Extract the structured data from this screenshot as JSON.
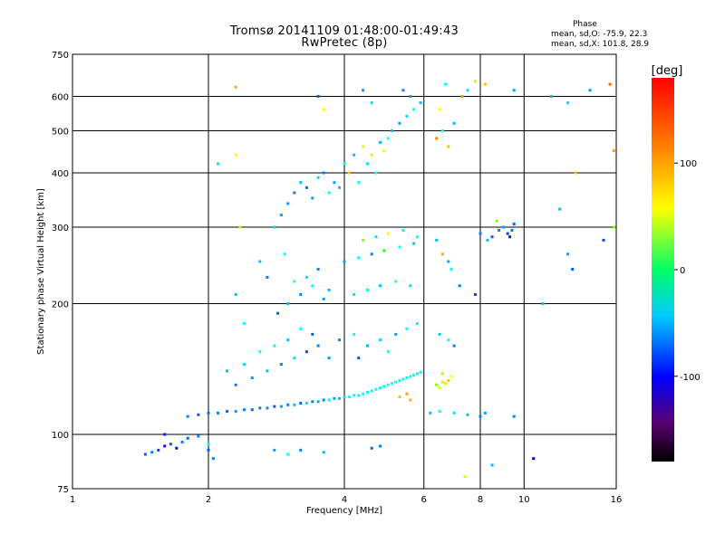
{
  "header": {
    "title_line1": "Tromsø 20141109 01:48:00-01:49:43",
    "title_line2": "RwPretec (8p)",
    "phase_heading": "Phase",
    "phase_o": "mean, sd,O: -75.9, 22.3",
    "phase_x": "mean, sd,X: 101.8, 28.9"
  },
  "chart_data": {
    "type": "scatter",
    "title": "Tromsø 20141109 01:48:00-01:49:43",
    "subtitle": "RwPretec (8p)",
    "xlabel": "Frequency [MHz]",
    "ylabel": "Stationary phase Virtual Height [km]",
    "xscale": "log",
    "yscale": "log",
    "xlim": [
      1,
      16
    ],
    "ylim": [
      75,
      750
    ],
    "x_ticks": [
      1,
      2,
      4,
      6,
      8,
      10,
      16
    ],
    "y_ticks": [
      75,
      100,
      200,
      300,
      400,
      500,
      600,
      750
    ],
    "grid": true,
    "colorbar": {
      "label": "[deg]",
      "min": -180,
      "max": 180,
      "ticks": [
        100,
        0,
        -100
      ],
      "colormap": "rainbow"
    },
    "series": [
      {
        "points": [
          [
            1.45,
            90,
            -110
          ],
          [
            1.5,
            91,
            -100
          ],
          [
            1.55,
            92,
            -120
          ],
          [
            1.6,
            94,
            -150
          ],
          [
            1.65,
            95,
            -115
          ],
          [
            1.7,
            93,
            -140
          ],
          [
            1.75,
            96,
            -100
          ],
          [
            1.6,
            100,
            -130
          ],
          [
            1.8,
            98,
            -110
          ],
          [
            1.9,
            99,
            -95
          ],
          [
            2.0,
            92,
            -110
          ],
          [
            2.05,
            88,
            -100
          ],
          [
            2.8,
            92,
            -90
          ],
          [
            3.0,
            90,
            -60
          ],
          [
            3.2,
            92,
            -100
          ],
          [
            4.6,
            93,
            -110
          ],
          [
            4.8,
            94,
            -100
          ],
          [
            3.6,
            91,
            -80
          ],
          [
            1.8,
            110,
            -100
          ],
          [
            1.9,
            111,
            -110
          ],
          [
            2.0,
            112,
            -105
          ],
          [
            2.1,
            112,
            -100
          ],
          [
            2.2,
            113,
            -110
          ],
          [
            2.3,
            113,
            -95
          ],
          [
            2.4,
            114,
            -100
          ],
          [
            2.5,
            114,
            -105
          ],
          [
            2.6,
            115,
            -100
          ],
          [
            2.7,
            115,
            -95
          ],
          [
            2.8,
            116,
            -110
          ],
          [
            2.9,
            116,
            -90
          ],
          [
            3.0,
            117,
            -100
          ],
          [
            3.1,
            117,
            -80
          ],
          [
            3.2,
            118,
            -105
          ],
          [
            3.3,
            118,
            -70
          ],
          [
            3.4,
            119,
            -100
          ],
          [
            3.5,
            119,
            -85
          ],
          [
            3.6,
            120,
            -100
          ],
          [
            3.7,
            120,
            -60
          ],
          [
            3.8,
            121,
            -90
          ],
          [
            3.9,
            121,
            -80
          ],
          [
            4.0,
            122,
            -70
          ],
          [
            4.1,
            122,
            -60
          ],
          [
            4.2,
            123,
            -55
          ],
          [
            4.3,
            123,
            -50
          ],
          [
            4.4,
            124,
            -60
          ],
          [
            4.5,
            125,
            -55
          ],
          [
            4.6,
            126,
            -50
          ],
          [
            4.7,
            127,
            -60
          ],
          [
            4.8,
            128,
            -55
          ],
          [
            4.9,
            129,
            -50
          ],
          [
            5.0,
            130,
            -60
          ],
          [
            5.1,
            131,
            -55
          ],
          [
            5.2,
            132,
            -50
          ],
          [
            5.3,
            133,
            -45
          ],
          [
            5.4,
            134,
            -60
          ],
          [
            5.5,
            135,
            -50
          ],
          [
            5.6,
            136,
            -55
          ],
          [
            5.7,
            137,
            -60
          ],
          [
            5.8,
            138,
            -50
          ],
          [
            5.9,
            139,
            -55
          ],
          [
            5.3,
            122,
            120
          ],
          [
            5.5,
            124,
            130
          ],
          [
            5.6,
            120,
            125
          ],
          [
            6.4,
            130,
            60
          ],
          [
            6.5,
            128,
            90
          ],
          [
            6.6,
            132,
            110
          ],
          [
            6.7,
            131,
            80
          ],
          [
            6.8,
            133,
            120
          ],
          [
            6.6,
            138,
            70
          ],
          [
            6.9,
            136,
            100
          ],
          [
            2.3,
            130,
            -100
          ],
          [
            2.5,
            135,
            -90
          ],
          [
            2.7,
            140,
            -80
          ],
          [
            2.9,
            145,
            -100
          ],
          [
            3.1,
            150,
            -70
          ],
          [
            2.6,
            155,
            -60
          ],
          [
            2.8,
            160,
            -50
          ],
          [
            3.0,
            165,
            -80
          ],
          [
            3.3,
            155,
            -120
          ],
          [
            3.5,
            160,
            -100
          ],
          [
            3.7,
            150,
            -90
          ],
          [
            3.4,
            170,
            -110
          ],
          [
            2.4,
            145,
            -70
          ],
          [
            2.2,
            140,
            -80
          ],
          [
            3.2,
            175,
            -60
          ],
          [
            3.9,
            165,
            -100
          ],
          [
            4.2,
            170,
            -60
          ],
          [
            4.5,
            160,
            -80
          ],
          [
            4.8,
            165,
            -70
          ],
          [
            5.2,
            170,
            -90
          ],
          [
            5.5,
            175,
            -60
          ],
          [
            5.8,
            180,
            -50
          ],
          [
            6.5,
            170,
            -80
          ],
          [
            6.8,
            165,
            -60
          ],
          [
            7.0,
            160,
            -100
          ],
          [
            4.3,
            150,
            -110
          ],
          [
            5.0,
            155,
            -60
          ],
          [
            3.0,
            200,
            -80
          ],
          [
            3.2,
            210,
            -100
          ],
          [
            3.4,
            220,
            -60
          ],
          [
            3.6,
            205,
            -90
          ],
          [
            3.3,
            230,
            -70
          ],
          [
            3.5,
            240,
            -100
          ],
          [
            3.7,
            215,
            -80
          ],
          [
            3.1,
            225,
            -60
          ],
          [
            4.2,
            210,
            -70
          ],
          [
            4.5,
            215,
            -50
          ],
          [
            4.8,
            220,
            -80
          ],
          [
            5.2,
            225,
            -60
          ],
          [
            5.6,
            220,
            -70
          ],
          [
            4.0,
            250,
            -90
          ],
          [
            4.3,
            255,
            -60
          ],
          [
            4.6,
            260,
            -100
          ],
          [
            4.9,
            265,
            30
          ],
          [
            5.3,
            270,
            -60
          ],
          [
            5.7,
            275,
            -80
          ],
          [
            4.4,
            280,
            60
          ],
          [
            4.7,
            285,
            -70
          ],
          [
            5.0,
            290,
            100
          ],
          [
            5.4,
            295,
            -50
          ],
          [
            5.8,
            285,
            -60
          ],
          [
            6.4,
            280,
            -80
          ],
          [
            6.6,
            260,
            130
          ],
          [
            6.8,
            250,
            -90
          ],
          [
            6.9,
            240,
            -60
          ],
          [
            7.2,
            220,
            -100
          ],
          [
            7.8,
            210,
            -120
          ],
          [
            8.0,
            290,
            -100
          ],
          [
            8.5,
            285,
            -110
          ],
          [
            8.8,
            295,
            -100
          ],
          [
            9.0,
            300,
            -90
          ],
          [
            9.2,
            290,
            -120
          ],
          [
            9.4,
            295,
            -100
          ],
          [
            8.3,
            280,
            -80
          ],
          [
            9.5,
            305,
            -110
          ],
          [
            8.7,
            310,
            60
          ],
          [
            9.3,
            285,
            -130
          ],
          [
            3.0,
            340,
            -90
          ],
          [
            3.1,
            360,
            -100
          ],
          [
            3.2,
            380,
            -80
          ],
          [
            3.3,
            370,
            -110
          ],
          [
            3.4,
            350,
            -90
          ],
          [
            3.5,
            390,
            -70
          ],
          [
            3.6,
            400,
            -100
          ],
          [
            3.7,
            360,
            -60
          ],
          [
            3.8,
            380,
            -90
          ],
          [
            3.9,
            370,
            -80
          ],
          [
            4.0,
            420,
            -60
          ],
          [
            4.1,
            400,
            120
          ],
          [
            4.2,
            440,
            -80
          ],
          [
            4.3,
            380,
            -60
          ],
          [
            4.4,
            460,
            90
          ],
          [
            4.5,
            420,
            -70
          ],
          [
            4.6,
            440,
            110
          ],
          [
            4.7,
            400,
            -60
          ],
          [
            4.8,
            470,
            -80
          ],
          [
            4.9,
            450,
            100
          ],
          [
            5.0,
            480,
            -60
          ],
          [
            5.1,
            500,
            -80
          ],
          [
            5.3,
            520,
            -90
          ],
          [
            5.5,
            540,
            -70
          ],
          [
            5.7,
            560,
            -60
          ],
          [
            5.9,
            580,
            -80
          ],
          [
            5.6,
            600,
            -90
          ],
          [
            5.4,
            620,
            -100
          ],
          [
            4.6,
            580,
            -70
          ],
          [
            4.4,
            620,
            -90
          ],
          [
            3.5,
            600,
            -110
          ],
          [
            3.6,
            560,
            100
          ],
          [
            6.4,
            480,
            140
          ],
          [
            6.6,
            500,
            -60
          ],
          [
            6.8,
            460,
            120
          ],
          [
            7.0,
            520,
            -80
          ],
          [
            6.5,
            560,
            100
          ],
          [
            7.3,
            600,
            130
          ],
          [
            7.5,
            620,
            -70
          ],
          [
            6.7,
            640,
            -60
          ],
          [
            7.8,
            650,
            110
          ],
          [
            8.2,
            640,
            120
          ],
          [
            9.5,
            620,
            -90
          ],
          [
            11.5,
            600,
            -80
          ],
          [
            12.5,
            580,
            -70
          ],
          [
            14,
            620,
            -90
          ],
          [
            15.5,
            640,
            150
          ],
          [
            13,
            400,
            120
          ],
          [
            12,
            330,
            -80
          ],
          [
            12.5,
            260,
            -90
          ],
          [
            12.8,
            240,
            -110
          ],
          [
            15,
            280,
            -120
          ],
          [
            15.8,
            300,
            60
          ],
          [
            15.8,
            450,
            130
          ],
          [
            11,
            200,
            -80
          ],
          [
            10.5,
            88,
            -140
          ],
          [
            7.4,
            80,
            90
          ],
          [
            8.5,
            85,
            -80
          ],
          [
            9.5,
            110,
            -100
          ],
          [
            8.2,
            112,
            -90
          ],
          [
            6.2,
            112,
            -80
          ],
          [
            6.5,
            113,
            -60
          ],
          [
            7.0,
            112,
            -70
          ],
          [
            7.5,
            111,
            -80
          ],
          [
            8.0,
            110,
            -100
          ],
          [
            2.3,
            630,
            130
          ],
          [
            2.3,
            440,
            100
          ],
          [
            2.35,
            300,
            80
          ],
          [
            2.3,
            210,
            -80
          ],
          [
            2.4,
            180,
            -60
          ],
          [
            2.1,
            420,
            -70
          ],
          [
            2.0,
            95,
            -60
          ],
          [
            2.6,
            250,
            -80
          ],
          [
            2.7,
            230,
            -100
          ],
          [
            2.8,
            300,
            -70
          ],
          [
            2.9,
            320,
            -90
          ],
          [
            2.95,
            260,
            -60
          ],
          [
            2.85,
            190,
            -110
          ]
        ]
      }
    ]
  }
}
